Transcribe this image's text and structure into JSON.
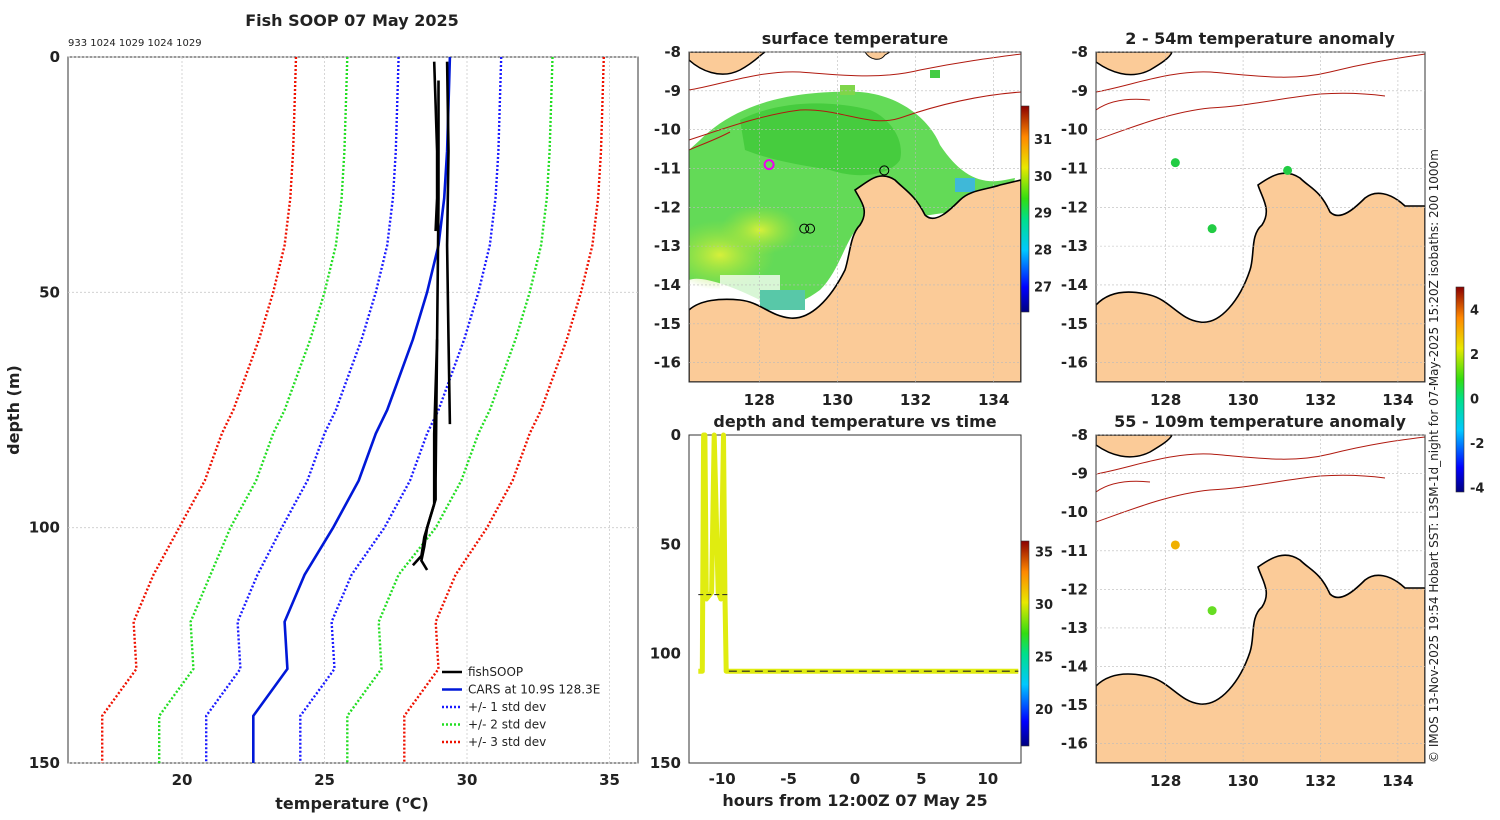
{
  "figure_title": "Fish SOOP 07 May 2025",
  "profile_ids": "933 1024 1029 1024 1029",
  "credit": "© IMOS 13-Nov-2025 19:54 Hobart SST: L3SM-1d_night for 07-May-2025 15:20Z isobaths: 200  1000m",
  "colors": {
    "fishsoop": "#000000",
    "cars": "#0018d8",
    "std1": "#1a1aff",
    "std2": "#22dd22",
    "std3": "#ee1100",
    "land": "#fbcb98",
    "isobath": "#b01a10",
    "trace": "#e0ec10"
  },
  "chart_data": [
    {
      "type": "line",
      "id": "profile",
      "title": "Fish SOOP 07 May 2025",
      "xlabel": "temperature (",
      "xlabel_sup": "o",
      "xlabel_unit": "C)",
      "ylabel": "depth (m)",
      "xlim": [
        16,
        36
      ],
      "ylim": [
        0,
        150
      ],
      "xticks": [
        20,
        25,
        30,
        35
      ],
      "yticks": [
        0,
        50,
        100,
        150
      ],
      "grid": true,
      "legend": [
        {
          "label": "fishSOOP",
          "style": "solid",
          "color": "#000000"
        },
        {
          "label": "CARS at 10.9S 128.3E",
          "style": "solid",
          "color": "#0018d8"
        },
        {
          "label": "+/- 1 std dev",
          "style": "dotted",
          "color": "#1a1aff"
        },
        {
          "label": "+/- 2 std dev",
          "style": "dotted",
          "color": "#22dd22"
        },
        {
          "label": "+/- 3 std dev",
          "style": "dotted",
          "color": "#ee1100"
        }
      ],
      "depths": [
        0,
        10,
        20,
        30,
        40,
        50,
        60,
        70,
        75,
        80,
        90,
        100,
        110,
        120,
        130,
        140,
        150
      ],
      "cars_mean": [
        29.4,
        29.35,
        29.3,
        29.2,
        29.0,
        28.6,
        28.1,
        27.5,
        27.2,
        26.8,
        26.2,
        25.3,
        24.3,
        23.6,
        23.7,
        22.5,
        22.5
      ],
      "std_offsets": [
        1.8,
        3.6,
        5.4
      ],
      "std_offsets_deep": [
        1.65,
        3.3,
        5.3
      ],
      "fishsoop": [
        {
          "depths": [
            1,
            10,
            20,
            30,
            37
          ],
          "values": [
            28.85,
            28.9,
            28.95,
            28.95,
            28.9
          ]
        },
        {
          "depths": [
            1,
            20,
            40,
            60,
            78
          ],
          "values": [
            29.3,
            29.35,
            29.3,
            29.35,
            29.4
          ]
        },
        {
          "depths": [
            5,
            30,
            60,
            90,
            94,
            98,
            102,
            106,
            108
          ],
          "values": [
            29.0,
            29.0,
            28.95,
            28.9,
            28.9,
            28.7,
            28.5,
            28.4,
            28.1
          ]
        },
        {
          "depths": [
            60,
            80,
            95,
            100,
            104,
            107,
            109
          ],
          "values": [
            28.95,
            28.85,
            28.85,
            28.6,
            28.5,
            28.4,
            28.6
          ]
        }
      ]
    },
    {
      "type": "heatmap",
      "id": "sst",
      "title": "surface temperature",
      "xlim": [
        126.2,
        134.7
      ],
      "ylim": [
        -16.5,
        -8
      ],
      "xticks": [
        128,
        130,
        132,
        134
      ],
      "yticks": [
        -8,
        -9,
        -10,
        -11,
        -12,
        -13,
        -14,
        -15,
        -16
      ],
      "colorbar": {
        "range": [
          26.3,
          31.9
        ],
        "ticks": [
          27,
          28,
          29,
          30,
          31
        ]
      },
      "markers": [
        {
          "lon": 128.25,
          "lat": -10.9,
          "ring": "magenta"
        },
        {
          "lon": 131.2,
          "lat": -11.05,
          "ring": "black"
        },
        {
          "lon": 129.15,
          "lat": -12.55,
          "ring": "black"
        },
        {
          "lon": 129.3,
          "lat": -12.55,
          "ring": "black"
        }
      ]
    },
    {
      "type": "line",
      "id": "timeseries",
      "title": "depth and temperature vs time",
      "xlabel": "hours from 12:00Z 07 May 25",
      "xlim": [
        -12.5,
        12.5
      ],
      "ylim": [
        0,
        150
      ],
      "xticks": [
        -10,
        -5,
        0,
        5,
        10
      ],
      "yticks": [
        0,
        50,
        100,
        150
      ],
      "colorbar": {
        "range": [
          16.5,
          36
        ],
        "ticks": [
          20,
          25,
          30,
          35
        ]
      },
      "hours": [
        -11.8,
        -11.5,
        -11.4,
        -11.3,
        -11.2,
        -10.8,
        -10.6,
        -10.3,
        -10.1,
        -9.9,
        -9.8,
        -9.7,
        -9.6,
        -9.5,
        12.3
      ],
      "depths": [
        108,
        108,
        0,
        0,
        75,
        72,
        0,
        72,
        75,
        0,
        72,
        108,
        108,
        108,
        108
      ],
      "dashed_depth": 108,
      "dashed_x": [
        -9.5,
        12.3
      ]
    },
    {
      "type": "scatter",
      "id": "anom_shallow",
      "title": "2 - 54m temperature anomaly",
      "xlim": [
        126.2,
        134.7
      ],
      "ylim": [
        -16.5,
        -8
      ],
      "xticks": [
        128,
        130,
        132,
        134
      ],
      "yticks": [
        -8,
        -9,
        -10,
        -11,
        -12,
        -13,
        -14,
        -15,
        -16
      ],
      "points": [
        {
          "lon": 128.25,
          "lat": -10.85,
          "anomaly": -0.1
        },
        {
          "lon": 131.15,
          "lat": -11.05,
          "anomaly": -0.1
        },
        {
          "lon": 129.2,
          "lat": -12.55,
          "anomaly": -0.2
        }
      ]
    },
    {
      "type": "scatter",
      "id": "anom_deep",
      "title": "55 - 109m temperature anomaly",
      "xlim": [
        126.2,
        134.7
      ],
      "ylim": [
        -16.5,
        -8
      ],
      "xticks": [
        128,
        130,
        132,
        134
      ],
      "yticks": [
        -8,
        -9,
        -10,
        -11,
        -12,
        -13,
        -14,
        -15,
        -16
      ],
      "points": [
        {
          "lon": 128.25,
          "lat": -10.85,
          "anomaly": 2.6
        },
        {
          "lon": 129.2,
          "lat": -12.55,
          "anomaly": 0.4
        }
      ]
    },
    {
      "type": "colorbar",
      "id": "anomaly_colorbar",
      "range": [
        -4.2,
        5
      ],
      "ticks": [
        -4,
        -2,
        0,
        2,
        4
      ]
    }
  ]
}
